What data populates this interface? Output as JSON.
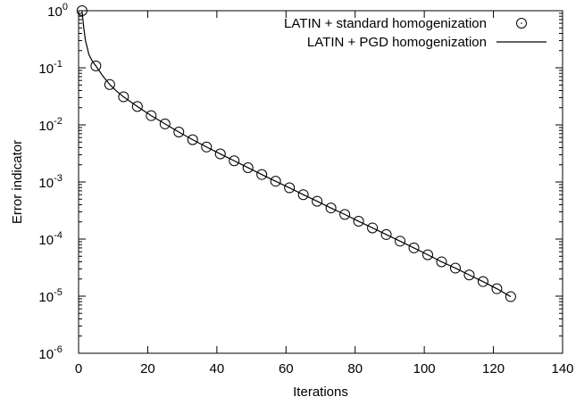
{
  "chart_data": {
    "type": "line",
    "xlabel": "Iterations",
    "ylabel": "Error indicator",
    "xlim": [
      0,
      140
    ],
    "ylim": [
      1e-06,
      1
    ],
    "yscale": "log",
    "x_ticks": [
      0,
      20,
      40,
      60,
      80,
      100,
      120,
      140
    ],
    "y_ticks": [
      {
        "base": "10",
        "exp": "0"
      },
      {
        "base": "10",
        "exp": "-1"
      },
      {
        "base": "10",
        "exp": "-2"
      },
      {
        "base": "10",
        "exp": "-3"
      },
      {
        "base": "10",
        "exp": "-4"
      },
      {
        "base": "10",
        "exp": "-5"
      },
      {
        "base": "10",
        "exp": "-6"
      }
    ],
    "legend_position": "top-right",
    "grid": false,
    "series": [
      {
        "name": "LATIN + standard homogenization",
        "style": "markers",
        "marker": "open-circle",
        "x": [
          1,
          5,
          9,
          13,
          17,
          21,
          25,
          29,
          33,
          37,
          41,
          45,
          49,
          53,
          57,
          61,
          65,
          69,
          73,
          77,
          81,
          85,
          89,
          93,
          97,
          101,
          105,
          109,
          113,
          117,
          121,
          125
        ],
        "y": [
          1.0,
          0.108,
          0.051,
          0.031,
          0.021,
          0.0145,
          0.0104,
          0.0075,
          0.0055,
          0.0041,
          0.0031,
          0.00235,
          0.00178,
          0.00135,
          0.00103,
          0.00079,
          0.0006,
          0.00046,
          0.00035,
          0.00027,
          0.000205,
          0.000157,
          0.00012,
          9.2e-05,
          7e-05,
          5.3e-05,
          4e-05,
          3.1e-05,
          2.35e-05,
          1.8e-05,
          1.35e-05,
          9.8e-06
        ]
      },
      {
        "name": "LATIN + PGD homogenization",
        "style": "line",
        "color": "#000000",
        "x": [
          1,
          1.5,
          2,
          3,
          4,
          5,
          7,
          9,
          11,
          13,
          17,
          21,
          25,
          29,
          33,
          37,
          41,
          45,
          49,
          53,
          57,
          61,
          65,
          69,
          73,
          77,
          81,
          85,
          89,
          93,
          97,
          101,
          105,
          109,
          113,
          117,
          121,
          125
        ],
        "y": [
          1.0,
          0.5,
          0.3,
          0.17,
          0.13,
          0.108,
          0.072,
          0.051,
          0.039,
          0.031,
          0.021,
          0.0145,
          0.0104,
          0.0075,
          0.0055,
          0.0041,
          0.0031,
          0.00235,
          0.00178,
          0.00135,
          0.00103,
          0.00079,
          0.0006,
          0.00046,
          0.00035,
          0.00027,
          0.000205,
          0.000157,
          0.00012,
          9.2e-05,
          7e-05,
          5.3e-05,
          4e-05,
          3.1e-05,
          2.35e-05,
          1.8e-05,
          1.35e-05,
          9.8e-06
        ]
      }
    ]
  }
}
